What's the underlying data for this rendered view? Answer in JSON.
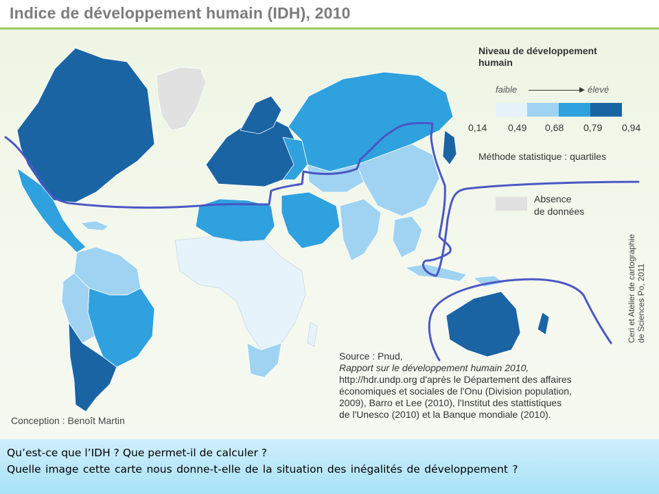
{
  "title": "Indice de développement humain (IDH), 2010",
  "legend": {
    "title_line1": "Niveau de développement",
    "title_line2": "humain",
    "low_label": "faible",
    "high_label": "élevé",
    "classes": [
      {
        "color": "#e6f3fb"
      },
      {
        "color": "#9fd3f1"
      },
      {
        "color": "#2fa1de"
      },
      {
        "color": "#1a64a4"
      }
    ],
    "thresholds": [
      "0,14",
      "0,49",
      "0,68",
      "0,79",
      "0,94"
    ],
    "method": "Méthode statistique : quartiles",
    "no_data_line1": "Absence",
    "no_data_line2": "de données",
    "no_data_color": "#e1e1e1"
  },
  "credit_line1": "Ceri et Atelier de cartographie",
  "credit_line2": "de Sciences Po, 2011",
  "source": {
    "line1": "Source : Pnud,",
    "line2": "Rapport sur le développement humain 2010,",
    "line3": "http://hdr.undp.org d'après le Département des affaires",
    "line4": "économiques et sociales de l'Onu (Division population,",
    "line5": "2009), Barro et Lee (2010), l'Institut des stattistiques",
    "line6": "de l'Unesco (2010) et la Banque mondiale (2010)."
  },
  "conception": "Conception : Benoît Martin",
  "questions": {
    "line1": "Qu’est-ce que l’IDH ? Que permet-il de calculer ?",
    "line2": "Quelle image cette carte nous donne-t-elle de la situation des inégalités de développement ?"
  },
  "colors": {
    "north_south_line": "#4a56c4",
    "title_rule": "#9ccc5a",
    "very_high": "#1a64a4",
    "high": "#2fa1de",
    "medium": "#9fd3f1",
    "low": "#e6f3fb"
  }
}
